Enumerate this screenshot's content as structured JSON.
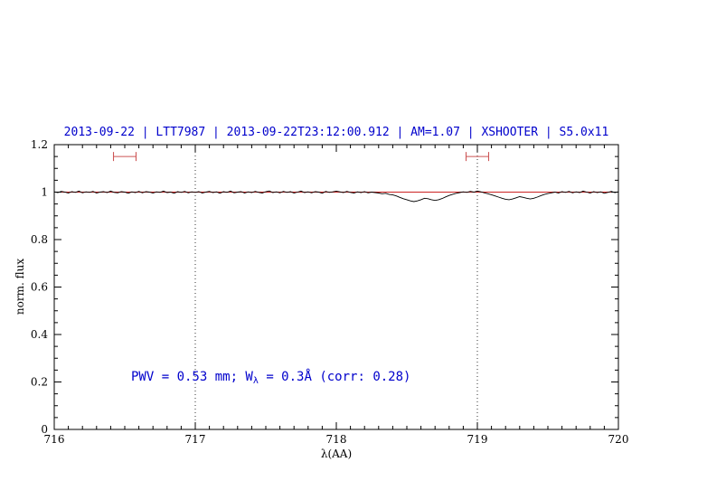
{
  "chart_data": {
    "type": "line",
    "title": "2013-09-22 | LTT7987 | 2013-09-22T23:12:00.912 | AM=1.07 | XSHOOTER | S5.0x11",
    "title_color": "#0000cc",
    "xlabel": "λ(AA)",
    "ylabel": "norm. flux",
    "xlim": [
      716,
      720
    ],
    "ylim": [
      0,
      1.2
    ],
    "x_ticks": {
      "major": [
        716,
        717,
        718,
        719,
        720
      ],
      "labels": [
        "716",
        "717",
        "718",
        "719",
        "720"
      ],
      "minor_step": 0.1
    },
    "y_ticks": {
      "major": [
        0,
        0.2,
        0.4,
        0.6,
        0.8,
        1,
        1.2
      ],
      "labels": [
        "0",
        "0.2",
        "0.4",
        "0.6",
        "0.8",
        "1",
        "1.2"
      ],
      "minor_step": 0.05
    },
    "grid_x_dotted": [
      717,
      719
    ],
    "grid": "vertical-dotted",
    "legend": "none",
    "continuum": {
      "y": 1.0,
      "color": "#cc2222"
    },
    "markers": [
      {
        "x1": 716.42,
        "x2": 716.58,
        "y": 1.15,
        "color": "#cc5555"
      },
      {
        "x1": 718.92,
        "x2": 719.08,
        "y": 1.15,
        "color": "#cc5555"
      }
    ],
    "annotation": {
      "prefix": "PWV = 0.53 mm; W",
      "sub": "λ",
      "suffix": " = 0.3Å (corr: 0.28)",
      "color": "#0000cc"
    },
    "series": [
      {
        "name": "spectrum",
        "color": "#000000",
        "x_start": 716.0,
        "x_step": 0.025,
        "values": [
          1.001,
          0.998,
          1.003,
          1.0,
          0.996,
          1.002,
          0.999,
          1.004,
          0.997,
          1.001,
          0.999,
          1.003,
          0.996,
          1.0,
          1.002,
          0.998,
          1.004,
          0.999,
          0.997,
          1.002,
          1.0,
          0.995,
          1.001,
          0.998,
          1.003,
          0.997,
          1.002,
          1.0,
          0.996,
          1.001,
          0.999,
          1.004,
          0.998,
          1.0,
          0.995,
          1.002,
          0.999,
          1.003,
          0.997,
          1.001,
          0.999,
          1.002,
          0.996,
          1.0,
          1.003,
          0.998,
          1.001,
          0.995,
          1.002,
          0.999,
          1.004,
          0.997,
          1.0,
          1.002,
          0.996,
          1.001,
          0.998,
          1.003,
          0.999,
          0.996,
          1.002,
          1.005,
          0.998,
          1.001,
          0.997,
          1.003,
          0.999,
          1.002,
          0.996,
          1.0,
          1.004,
          0.998,
          1.001,
          0.997,
          1.002,
          1.0,
          0.995,
          1.003,
          0.999,
          1.001,
          1.004,
          1.001,
          0.998,
          1.003,
          0.999,
          0.996,
          1.001,
          0.998,
          1.002,
          0.997,
          1.0,
          0.998,
          0.996,
          0.993,
          0.995,
          0.99,
          0.988,
          0.984,
          0.978,
          0.972,
          0.968,
          0.963,
          0.96,
          0.963,
          0.968,
          0.974,
          0.972,
          0.968,
          0.965,
          0.968,
          0.973,
          0.98,
          0.986,
          0.991,
          0.995,
          0.998,
          1.001,
          0.999,
          1.003,
          1.0,
          1.004,
          1.001,
          0.997,
          0.993,
          0.989,
          0.984,
          0.979,
          0.974,
          0.97,
          0.968,
          0.971,
          0.976,
          0.981,
          0.978,
          0.974,
          0.971,
          0.974,
          0.979,
          0.985,
          0.99,
          0.994,
          0.997,
          1.0,
          0.996,
          1.002,
          0.999,
          1.003,
          0.997,
          1.001,
          0.998,
          1.004,
          1.0,
          0.996,
          1.002,
          0.998,
          1.001,
          0.995,
          0.999,
          1.003,
          0.998,
          1.001
        ]
      }
    ]
  }
}
